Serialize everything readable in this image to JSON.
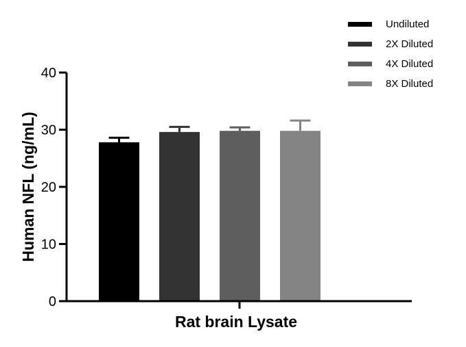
{
  "chart_data": {
    "type": "bar",
    "categories": [
      "Rat brain Lysate"
    ],
    "xlabel": "Rat brain Lysate",
    "ylabel": "Human NFL (ng/mL)",
    "ylim": [
      0,
      40
    ],
    "yticks": [
      0,
      10,
      20,
      30,
      40
    ],
    "grid": false,
    "legend_position": "top-right",
    "series": [
      {
        "name": "Undiluted",
        "values": [
          27.8
        ],
        "error": [
          0.8
        ],
        "color": "#000000"
      },
      {
        "name": "2X Diluted",
        "values": [
          29.6
        ],
        "error": [
          0.9
        ],
        "color": "#333333"
      },
      {
        "name": "4X Diluted",
        "values": [
          29.8
        ],
        "error": [
          0.6
        ],
        "color": "#5e5e5e"
      },
      {
        "name": "8X Diluted",
        "values": [
          29.8
        ],
        "error": [
          1.8
        ],
        "color": "#848484"
      }
    ]
  }
}
